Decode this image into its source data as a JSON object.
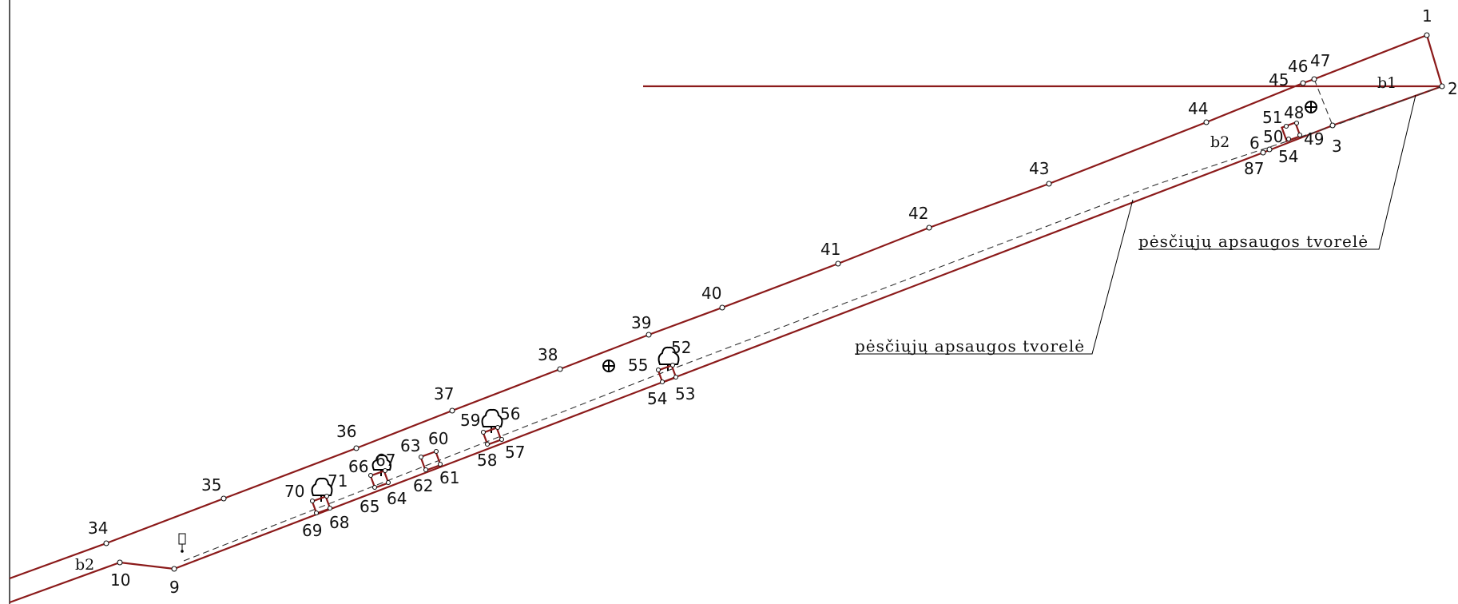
{
  "plan": {
    "callout_label": "pėsčiųjų apsaugos tvorelė",
    "zones": {
      "b1": "b1",
      "b2_upper": "b2",
      "b2_lower": "b2"
    },
    "boundary_point_labels": {
      "p1": "1",
      "p2": "2",
      "p3": "3",
      "p6": "6",
      "p87": "87",
      "p9": "9",
      "p10": "10",
      "p34": "34",
      "p35": "35",
      "p36": "36",
      "p37": "37",
      "p38": "38",
      "p39": "39",
      "p40": "40",
      "p41": "41",
      "p42": "42",
      "p43": "43",
      "p44": "44",
      "p45": "45",
      "p46": "46",
      "p47": "47"
    },
    "object_point_labels": {
      "p48": "48",
      "p49": "49",
      "p50": "50",
      "p51": "51",
      "p54a": "54",
      "p52": "52",
      "p53": "53",
      "p54b": "54",
      "p55": "55",
      "p56": "56",
      "p57": "57",
      "p58": "58",
      "p59": "59",
      "p60": "60",
      "p61": "61",
      "p62": "62",
      "p63": "63",
      "p64": "64",
      "p65": "65",
      "p66": "66",
      "p67": "67",
      "p68": "68",
      "p69": "69",
      "p70": "70",
      "p71": "71"
    },
    "symbols": {
      "tree": "deciduous-tree-symbol",
      "hydrant": "hydrant-symbol",
      "sign": "road-sign-symbol"
    },
    "colors": {
      "boundary": "#8b1a1a",
      "linework": "#000000",
      "background": "#ffffff"
    }
  }
}
